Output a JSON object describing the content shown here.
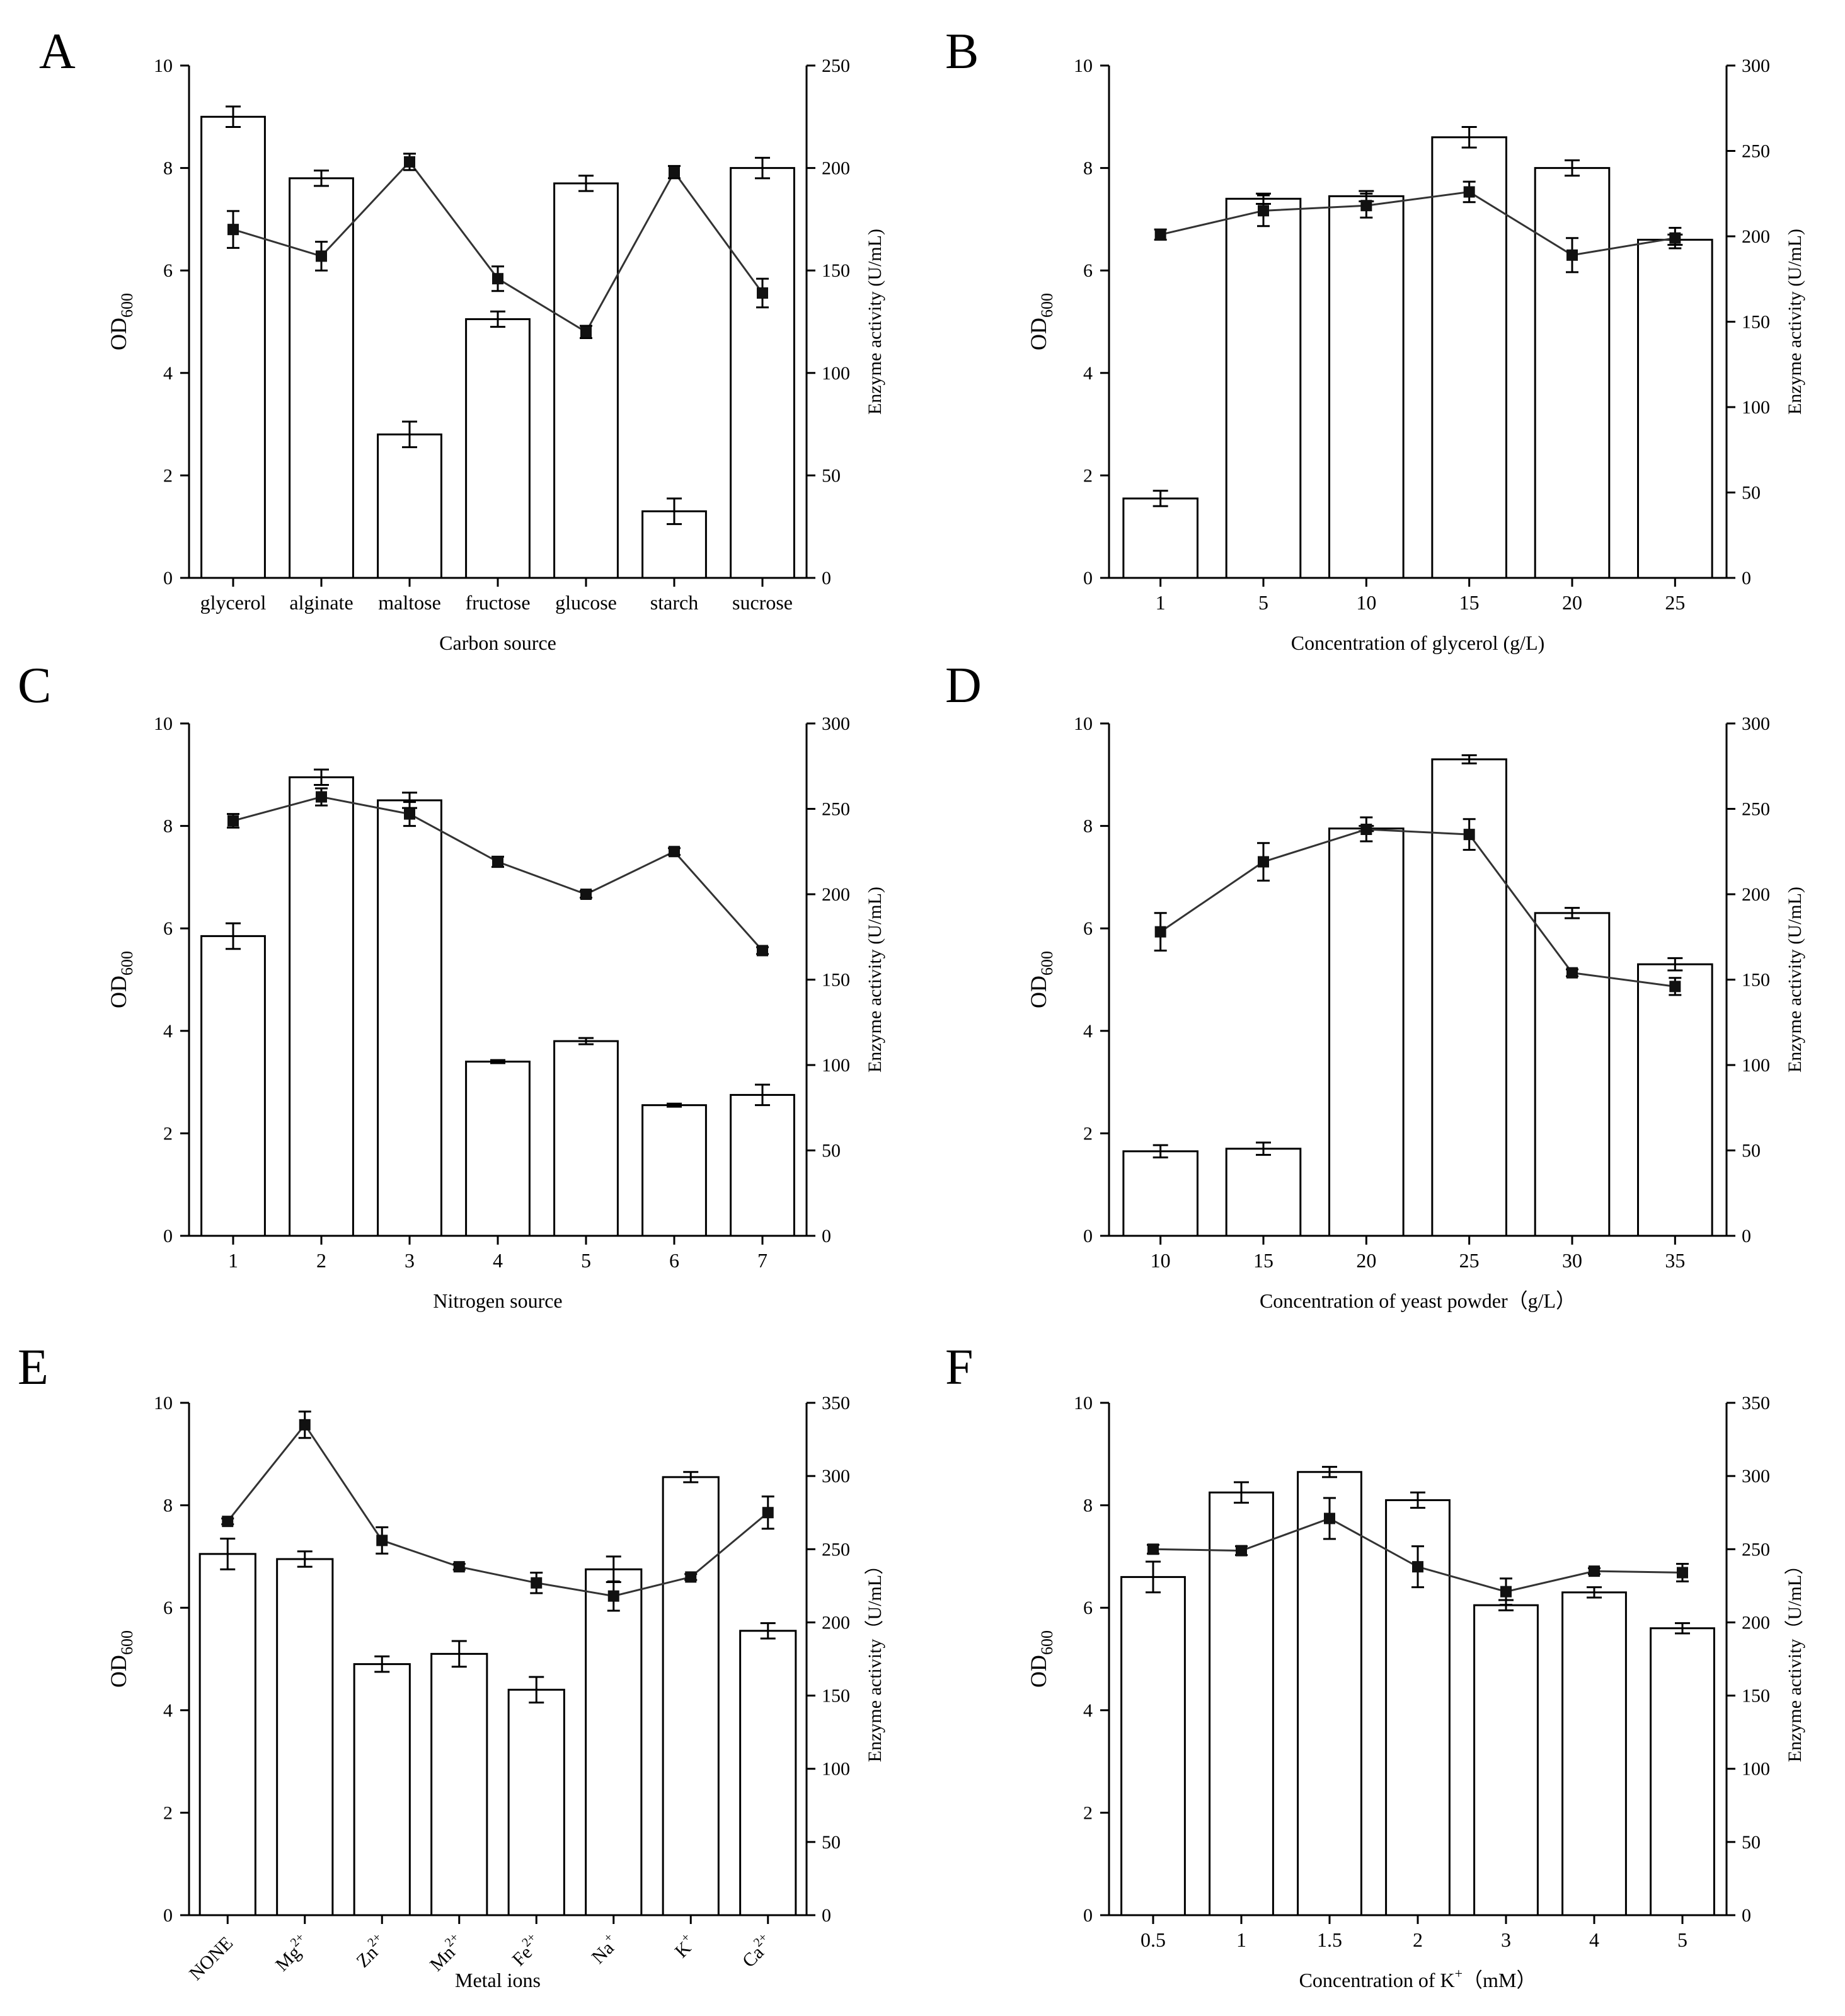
{
  "figure": {
    "panels": [
      {
        "panel_label": "A",
        "chart_data": {
          "type": "bar+line",
          "xlabel": "Carbon source",
          "ylabel_left": "OD",
          "ylabel_left_sub": "600",
          "ylabel_left_sup": "",
          "ylabel_right": "Enzyme activity (U/mL)",
          "ylim_left": [
            0,
            10
          ],
          "ylim_right": [
            0,
            250
          ],
          "yticks_left": [
            0,
            2,
            4,
            6,
            8,
            10
          ],
          "yticks_right": [
            0,
            50,
            100,
            150,
            200,
            250
          ],
          "xtick_rotate": false,
          "categories": [
            {
              "text": "glycerol"
            },
            {
              "text": "alginate"
            },
            {
              "text": "maltose"
            },
            {
              "text": "fructose"
            },
            {
              "text": "glucose"
            },
            {
              "text": "starch"
            },
            {
              "text": "sucrose"
            }
          ],
          "series": [
            {
              "name": "OD600",
              "kind": "bar",
              "axis": "left",
              "values": [
                9.0,
                7.8,
                2.8,
                5.05,
                7.7,
                1.3,
                8.0
              ],
              "errors": [
                0.2,
                0.15,
                0.25,
                0.15,
                0.15,
                0.25,
                0.2
              ]
            },
            {
              "name": "Enzyme activity",
              "kind": "line",
              "axis": "right",
              "values": [
                170,
                157,
                203,
                146,
                120,
                198,
                139
              ],
              "errors": [
                9,
                7,
                4,
                6,
                3,
                3,
                7
              ]
            }
          ]
        }
      },
      {
        "panel_label": "B",
        "chart_data": {
          "type": "bar+line",
          "xlabel": "Concentration of glycerol (g/L)",
          "ylabel_left": "OD",
          "ylabel_left_sub": "600",
          "ylabel_left_sup": "",
          "ylabel_right": "Enzyme activity (U/mL)",
          "ylim_left": [
            0,
            10
          ],
          "ylim_right": [
            0,
            300
          ],
          "yticks_left": [
            0,
            2,
            4,
            6,
            8,
            10
          ],
          "yticks_right": [
            0,
            50,
            100,
            150,
            200,
            250,
            300
          ],
          "xtick_rotate": false,
          "categories": [
            {
              "text": "1"
            },
            {
              "text": "5"
            },
            {
              "text": "10"
            },
            {
              "text": "15"
            },
            {
              "text": "20"
            },
            {
              "text": "25"
            }
          ],
          "series": [
            {
              "name": "OD600",
              "kind": "bar",
              "axis": "left",
              "values": [
                1.55,
                7.4,
                7.45,
                8.6,
                8.0,
                6.6
              ],
              "errors": [
                0.15,
                0.1,
                0.1,
                0.2,
                0.15,
                0.1
              ]
            },
            {
              "name": "Enzyme activity",
              "kind": "line",
              "axis": "right",
              "values": [
                201,
                215,
                218,
                226,
                189,
                199
              ],
              "errors": [
                3,
                9,
                7,
                6,
                10,
                6
              ]
            }
          ]
        }
      },
      {
        "panel_label": "C",
        "chart_data": {
          "type": "bar+line",
          "xlabel": "Nitrogen source",
          "ylabel_left": "OD",
          "ylabel_left_sub": "600",
          "ylabel_left_sup": "",
          "ylabel_right": "Enzyme activity (U/mL)",
          "ylim_left": [
            0,
            10
          ],
          "ylim_right": [
            0,
            300
          ],
          "yticks_left": [
            0,
            2,
            4,
            6,
            8,
            10
          ],
          "yticks_right": [
            0,
            50,
            100,
            150,
            200,
            250,
            300
          ],
          "xtick_rotate": false,
          "categories": [
            {
              "text": "1"
            },
            {
              "text": "2"
            },
            {
              "text": "3"
            },
            {
              "text": "4"
            },
            {
              "text": "5"
            },
            {
              "text": "6"
            },
            {
              "text": "7"
            }
          ],
          "series": [
            {
              "name": "OD600",
              "kind": "bar",
              "axis": "left",
              "values": [
                5.85,
                8.95,
                8.5,
                3.4,
                3.8,
                2.55,
                2.75
              ],
              "errors": [
                0.25,
                0.15,
                0.15,
                0.03,
                0.06,
                0.03,
                0.2
              ]
            },
            {
              "name": "Enzyme activity",
              "kind": "line",
              "axis": "right",
              "values": [
                243,
                257,
                247,
                219,
                200,
                225,
                167
              ],
              "errors": [
                4,
                5,
                7,
                3,
                2,
                2,
                2
              ]
            }
          ]
        }
      },
      {
        "panel_label": "D",
        "chart_data": {
          "type": "bar+line",
          "xlabel": "Concentration of yeast powder（g/L）",
          "ylabel_left": "OD",
          "ylabel_left_sub": "600",
          "ylabel_left_sup": "",
          "ylabel_right": "Enzyme activity (U/mL)",
          "ylim_left": [
            0,
            10
          ],
          "ylim_right": [
            0,
            300
          ],
          "yticks_left": [
            0,
            2,
            4,
            6,
            8,
            10
          ],
          "yticks_right": [
            0,
            50,
            100,
            150,
            200,
            250,
            300
          ],
          "xtick_rotate": false,
          "categories": [
            {
              "text": "10"
            },
            {
              "text": "15"
            },
            {
              "text": "20"
            },
            {
              "text": "25"
            },
            {
              "text": "30"
            },
            {
              "text": "35"
            }
          ],
          "series": [
            {
              "name": "OD600",
              "kind": "bar",
              "axis": "left",
              "values": [
                1.65,
                1.7,
                7.95,
                9.3,
                6.3,
                5.3
              ],
              "errors": [
                0.12,
                0.12,
                0.05,
                0.08,
                0.1,
                0.12
              ]
            },
            {
              "name": "Enzyme activity",
              "kind": "line",
              "axis": "right",
              "values": [
                178,
                219,
                238,
                235,
                154,
                146
              ],
              "errors": [
                11,
                11,
                7,
                9,
                2,
                5
              ]
            }
          ]
        }
      },
      {
        "panel_label": "E",
        "chart_data": {
          "type": "bar+line",
          "xlabel": "Metal ions",
          "ylabel_left": "OD",
          "ylabel_left_sub": "600",
          "ylabel_left_sup": "",
          "ylabel_right": "Enzyme activity（U/mL）",
          "ylim_left": [
            0,
            10
          ],
          "ylim_right": [
            0,
            350
          ],
          "yticks_left": [
            0,
            2,
            4,
            6,
            8,
            10
          ],
          "yticks_right": [
            0,
            50,
            100,
            150,
            200,
            250,
            300,
            350
          ],
          "xtick_rotate": true,
          "categories": [
            {
              "text": "NONE"
            },
            {
              "text": "Mg",
              "sup": "2+"
            },
            {
              "text": "Zn",
              "sup": "2+"
            },
            {
              "text": "Mn",
              "sup": "2+"
            },
            {
              "text": "Fe",
              "sup": "2+"
            },
            {
              "text": "Na",
              "sup": "+"
            },
            {
              "text": "K",
              "sup": "+"
            },
            {
              "text": "Ca",
              "sup": "2+"
            }
          ],
          "series": [
            {
              "name": "OD600",
              "kind": "bar",
              "axis": "left",
              "values": [
                7.05,
                6.95,
                4.9,
                5.1,
                4.4,
                6.75,
                8.55,
                5.55
              ],
              "errors": [
                0.3,
                0.15,
                0.15,
                0.25,
                0.25,
                0.25,
                0.1,
                0.15
              ]
            },
            {
              "name": "Enzyme activity",
              "kind": "line",
              "axis": "right",
              "values": [
                269,
                335,
                256,
                238,
                227,
                218,
                231,
                275
              ],
              "errors": [
                2,
                9,
                9,
                2,
                7,
                10,
                2,
                11
              ]
            }
          ]
        }
      },
      {
        "panel_label": "F",
        "chart_data": {
          "type": "bar+line",
          "xlabel": "Concentration of K",
          "xlabel_sup": "+",
          "xlabel_tail": "（mM）",
          "ylabel_left": "OD",
          "ylabel_left_sub": "600",
          "ylabel_left_sup": "",
          "ylabel_right": "Enzyme activity（U/mL）",
          "ylim_left": [
            0,
            10
          ],
          "ylim_right": [
            0,
            350
          ],
          "yticks_left": [
            0,
            2,
            4,
            6,
            8,
            10
          ],
          "yticks_right": [
            0,
            50,
            100,
            150,
            200,
            250,
            300,
            350
          ],
          "xtick_rotate": false,
          "categories": [
            {
              "text": "0.5"
            },
            {
              "text": "1"
            },
            {
              "text": "1.5"
            },
            {
              "text": "2"
            },
            {
              "text": "3"
            },
            {
              "text": "4"
            },
            {
              "text": "5"
            }
          ],
          "series": [
            {
              "name": "OD600",
              "kind": "bar",
              "axis": "left",
              "values": [
                6.6,
                8.25,
                8.65,
                8.1,
                6.05,
                6.3,
                5.6
              ],
              "errors": [
                0.3,
                0.2,
                0.1,
                0.15,
                0.1,
                0.1,
                0.1
              ]
            },
            {
              "name": "Enzyme activity",
              "kind": "line",
              "axis": "right",
              "values": [
                250,
                249,
                271,
                238,
                221,
                235,
                234
              ],
              "errors": [
                3,
                3,
                14,
                14,
                9,
                2,
                6
              ]
            }
          ]
        }
      }
    ]
  }
}
